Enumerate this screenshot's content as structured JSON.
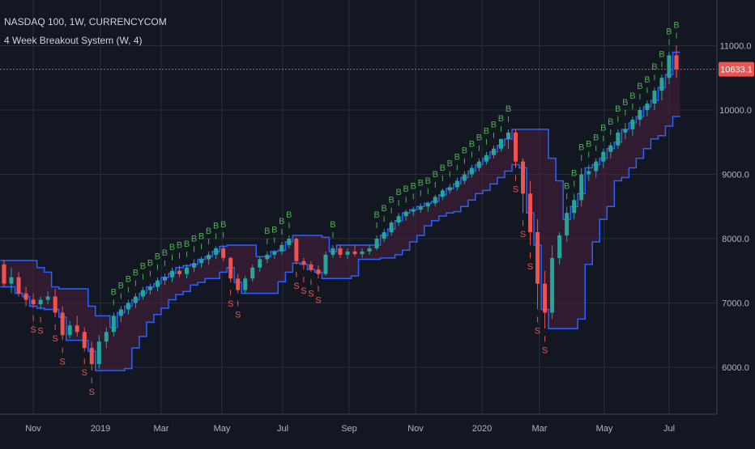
{
  "header": {
    "symbol": "NASDAQ 100, 1W, CURRENCYCOM",
    "indicator": "4 Week Breakout System (W, 4)"
  },
  "colors": {
    "background": "#131722",
    "grid": "#2a2e39",
    "up": "#26a69a",
    "down": "#ef5350",
    "buy_label": "#4caf50",
    "sell_label": "#ef5350",
    "channel": "#2962ff",
    "channel_fill": "#4a1f3d",
    "price_tag": "#ef5350",
    "axis_text": "#b2b5be"
  },
  "icons": {
    "buy_marker": "B",
    "sell_marker": "S"
  },
  "chart_data": {
    "type": "candlestick",
    "title": "NASDAQ 100, 1W, CURRENCYCOM",
    "x_tick_labels": [
      "Nov",
      "2019",
      "Mar",
      "May",
      "Jul",
      "Sep",
      "Nov",
      "2020",
      "Mar",
      "May",
      "Jul"
    ],
    "y_tick_labels": [
      "11000.0",
      "10000.0",
      "9000.0",
      "8000.0",
      "7000.0",
      "6000.0"
    ],
    "ylim": [
      5550,
      11550
    ],
    "last_price": 10633.1,
    "last_price_label": "10633.1",
    "grid": true,
    "legend": "top-left",
    "candles": [
      [
        7600,
        7660,
        7250,
        7300
      ],
      [
        7300,
        7550,
        7150,
        7400
      ],
      [
        7400,
        7480,
        7100,
        7150
      ],
      [
        7150,
        7250,
        6950,
        7050
      ],
      [
        7050,
        7150,
        6920,
        6980
      ],
      [
        6980,
        7100,
        6900,
        7050
      ],
      [
        7050,
        7180,
        6980,
        7100
      ],
      [
        7100,
        7220,
        6780,
        6850
      ],
      [
        6850,
        6950,
        6420,
        6500
      ],
      [
        6500,
        6720,
        6450,
        6650
      ],
      [
        6650,
        6800,
        6480,
        6550
      ],
      [
        6550,
        6620,
        6250,
        6300
      ],
      [
        6300,
        6400,
        5950,
        6050
      ],
      [
        6050,
        6500,
        5980,
        6400
      ],
      [
        6400,
        6620,
        6300,
        6550
      ],
      [
        6550,
        6850,
        6480,
        6800
      ],
      [
        6800,
        6950,
        6700,
        6900
      ],
      [
        6900,
        7050,
        6820,
        7000
      ],
      [
        7000,
        7150,
        6920,
        7100
      ],
      [
        7100,
        7250,
        7050,
        7200
      ],
      [
        7200,
        7300,
        7130,
        7250
      ],
      [
        7250,
        7400,
        7180,
        7350
      ],
      [
        7350,
        7460,
        7280,
        7400
      ],
      [
        7400,
        7550,
        7320,
        7500
      ],
      [
        7500,
        7580,
        7400,
        7450
      ],
      [
        7450,
        7600,
        7380,
        7550
      ],
      [
        7550,
        7680,
        7480,
        7620
      ],
      [
        7620,
        7720,
        7550,
        7680
      ],
      [
        7680,
        7800,
        7600,
        7750
      ],
      [
        7750,
        7880,
        7680,
        7850
      ],
      [
        7850,
        7900,
        7650,
        7700
      ],
      [
        7700,
        7720,
        7320,
        7380
      ],
      [
        7380,
        7450,
        7150,
        7200
      ],
      [
        7200,
        7420,
        7150,
        7380
      ],
      [
        7380,
        7600,
        7330,
        7550
      ],
      [
        7550,
        7720,
        7480,
        7680
      ],
      [
        7680,
        7800,
        7620,
        7750
      ],
      [
        7750,
        7820,
        7680,
        7800
      ],
      [
        7800,
        7950,
        7750,
        7900
      ],
      [
        7900,
        8050,
        7850,
        8000
      ],
      [
        8000,
        8020,
        7600,
        7650
      ],
      [
        7650,
        7700,
        7520,
        7600
      ],
      [
        7600,
        7650,
        7480,
        7520
      ],
      [
        7520,
        7580,
        7380,
        7450
      ],
      [
        7450,
        7800,
        7420,
        7750
      ],
      [
        7750,
        7900,
        7700,
        7850
      ],
      [
        7850,
        7900,
        7700,
        7750
      ],
      [
        7750,
        7850,
        7680,
        7800
      ],
      [
        7800,
        7900,
        7720,
        7760
      ],
      [
        7760,
        7850,
        7700,
        7800
      ],
      [
        7800,
        7900,
        7750,
        7850
      ],
      [
        7850,
        8050,
        7820,
        8000
      ],
      [
        8000,
        8150,
        7950,
        8100
      ],
      [
        8100,
        8280,
        8050,
        8250
      ],
      [
        8250,
        8400,
        8200,
        8350
      ],
      [
        8350,
        8450,
        8280,
        8420
      ],
      [
        8420,
        8500,
        8350,
        8450
      ],
      [
        8450,
        8550,
        8400,
        8500
      ],
      [
        8500,
        8580,
        8420,
        8550
      ],
      [
        8550,
        8680,
        8500,
        8650
      ],
      [
        8650,
        8780,
        8600,
        8750
      ],
      [
        8750,
        8850,
        8700,
        8800
      ],
      [
        8800,
        8950,
        8750,
        8900
      ],
      [
        8900,
        9050,
        8850,
        9000
      ],
      [
        9000,
        9150,
        8950,
        9100
      ],
      [
        9100,
        9250,
        9050,
        9200
      ],
      [
        9200,
        9350,
        9150,
        9300
      ],
      [
        9300,
        9450,
        9250,
        9400
      ],
      [
        9400,
        9550,
        9350,
        9550
      ],
      [
        9550,
        9700,
        9400,
        9650
      ],
      [
        9650,
        9700,
        9100,
        9200
      ],
      [
        9200,
        9250,
        8400,
        8700
      ],
      [
        8700,
        8900,
        7900,
        8100
      ],
      [
        8100,
        8300,
        6900,
        7300
      ],
      [
        7300,
        7500,
        6600,
        6850
      ],
      [
        6850,
        7900,
        6750,
        7700
      ],
      [
        7700,
        8100,
        7600,
        8050
      ],
      [
        8050,
        8500,
        7950,
        8400
      ],
      [
        8400,
        8700,
        8300,
        8600
      ],
      [
        8600,
        9100,
        8500,
        9000
      ],
      [
        9000,
        9150,
        8900,
        9050
      ],
      [
        9050,
        9250,
        8950,
        9200
      ],
      [
        9200,
        9400,
        9100,
        9350
      ],
      [
        9350,
        9500,
        9250,
        9450
      ],
      [
        9450,
        9700,
        9400,
        9650
      ],
      [
        9650,
        9800,
        9550,
        9700
      ],
      [
        9700,
        9900,
        9600,
        9850
      ],
      [
        9850,
        10050,
        9750,
        10000
      ],
      [
        10000,
        10150,
        9900,
        10100
      ],
      [
        10100,
        10350,
        10000,
        10300
      ],
      [
        10300,
        10550,
        10150,
        10500
      ],
      [
        10500,
        10900,
        10400,
        10850
      ],
      [
        10850,
        11000,
        10500,
        10633.1
      ]
    ]
  }
}
